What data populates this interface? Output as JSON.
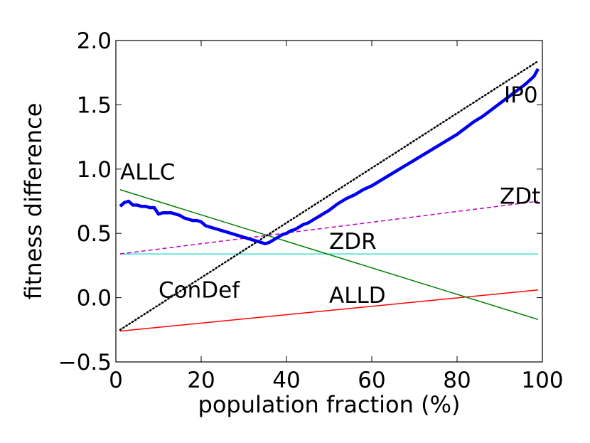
{
  "chart_data": {
    "type": "line",
    "xlabel": "population fraction (%)",
    "ylabel": "fitness difference",
    "xlim": [
      0,
      100
    ],
    "ylim": [
      -0.5,
      2.0
    ],
    "xticks": [
      0,
      20,
      40,
      60,
      80,
      100
    ],
    "yticks": [
      -0.5,
      0.0,
      0.5,
      1.0,
      1.5,
      2.0
    ],
    "xtick_labels": [
      "0",
      "20",
      "40",
      "60",
      "80",
      "100"
    ],
    "ytick_labels": [
      "−0.5",
      "0.0",
      "0.5",
      "1.0",
      "1.5",
      "2.0"
    ],
    "grid": false,
    "series": [
      {
        "name": "ALLC",
        "color": "#008000",
        "style": "solid",
        "x": [
          1,
          99
        ],
        "y": [
          0.84,
          -0.17
        ],
        "label_at": [
          1,
          0.92
        ]
      },
      {
        "name": "ALLD",
        "color": "#ff0000",
        "style": "solid",
        "x": [
          1,
          99
        ],
        "y": [
          -0.26,
          0.06
        ],
        "label_at": [
          50,
          -0.04
        ]
      },
      {
        "name": "ZDR",
        "color": "#40e0d0",
        "style": "solid",
        "x": [
          1,
          99
        ],
        "y": [
          0.34,
          0.34
        ],
        "label_at": [
          50,
          0.38
        ]
      },
      {
        "name": "ZDt",
        "color": "#bf00bf",
        "style": "dashed",
        "x": [
          1,
          99
        ],
        "y": [
          0.34,
          0.75
        ],
        "label_at": [
          90,
          0.73
        ]
      },
      {
        "name": "ConDef",
        "color": "#000000",
        "style": "dotted",
        "x": [
          1,
          99
        ],
        "y": [
          -0.25,
          1.84
        ],
        "label_at": [
          10,
          0.0
        ]
      },
      {
        "name": "IP0",
        "color": "#0000ee",
        "style": "solid-thick",
        "x": [
          1,
          2,
          3,
          4,
          5,
          6,
          7,
          8,
          9,
          10,
          11,
          12,
          13,
          14,
          15,
          16,
          17,
          18,
          19,
          20,
          21,
          22,
          23,
          24,
          25,
          26,
          27,
          28,
          29,
          30,
          31,
          32,
          33,
          34,
          35,
          36,
          37,
          38,
          39,
          40,
          41,
          42,
          43,
          44,
          45,
          46,
          47,
          48,
          49,
          50,
          52,
          54,
          56,
          58,
          60,
          62,
          64,
          66,
          68,
          70,
          72,
          74,
          76,
          78,
          80,
          82,
          84,
          86,
          88,
          90,
          92,
          94,
          96,
          98,
          99
        ],
        "y": [
          0.71,
          0.74,
          0.75,
          0.72,
          0.72,
          0.71,
          0.71,
          0.7,
          0.7,
          0.65,
          0.66,
          0.66,
          0.66,
          0.65,
          0.64,
          0.62,
          0.61,
          0.6,
          0.6,
          0.59,
          0.56,
          0.55,
          0.54,
          0.53,
          0.52,
          0.51,
          0.5,
          0.49,
          0.48,
          0.47,
          0.46,
          0.45,
          0.44,
          0.43,
          0.42,
          0.43,
          0.45,
          0.47,
          0.49,
          0.5,
          0.52,
          0.53,
          0.55,
          0.57,
          0.58,
          0.6,
          0.62,
          0.64,
          0.66,
          0.68,
          0.73,
          0.77,
          0.8,
          0.84,
          0.87,
          0.91,
          0.95,
          0.99,
          1.03,
          1.07,
          1.11,
          1.15,
          1.19,
          1.23,
          1.27,
          1.32,
          1.37,
          1.41,
          1.46,
          1.51,
          1.56,
          1.61,
          1.66,
          1.72,
          1.78
        ],
        "label_at": [
          91,
          1.52
        ]
      }
    ]
  }
}
